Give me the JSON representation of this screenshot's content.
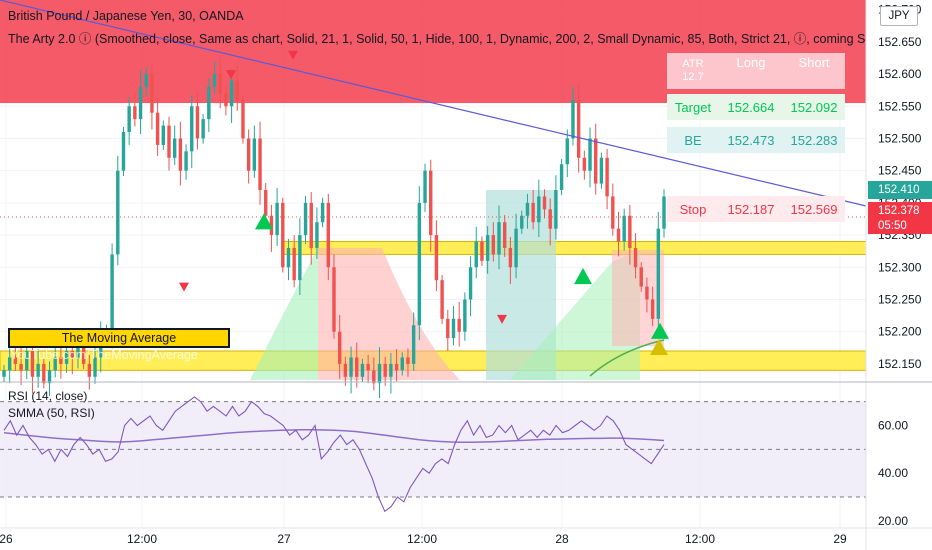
{
  "header": {
    "title": "British Pound / Japanese Yen, 30, OANDA",
    "study": "The Arty 2.0 ⓘ (Smoothed, close, Same as chart, Solid, 21, 1, Solid, 50, 1, Hide, 100, 1, Dynamic, 200, 2, Small Dynamic, 85, Both, Strict 21, ⓘ, coming S"
  },
  "currency_button": "JPY",
  "price_tags": {
    "last": "152.410",
    "current": "152.378",
    "countdown": "05:50"
  },
  "table": {
    "header_row": [
      "ATR\n12.7",
      "Long",
      "Short"
    ],
    "rows": [
      {
        "label": "Target",
        "long": "152.664",
        "short": "152.092"
      },
      {
        "label": "BE",
        "long": "152.473",
        "short": "152.283"
      },
      {
        "label": "Stop",
        "long": "152.187",
        "short": "152.569"
      }
    ]
  },
  "overlay": {
    "ma_box": "The Moving Average",
    "watermark": "YouTube.com/TheMovingAverage"
  },
  "rsi_labels": {
    "rsi": "RSI (14, close)",
    "smma": "SMMA (50, RSI)"
  },
  "colors": {
    "up": "#26a69a",
    "down": "#ef5350",
    "bull_candle": "#26a69a",
    "bear_candle": "#ef5350",
    "zone_red": "#f23645",
    "zone_yellow": "#ffeb3b",
    "trendline": "#5b5bd6",
    "rsi_line": "#7e57c2",
    "rsi_band": "#ede7f6"
  },
  "chart_data": [
    {
      "type": "candlestick",
      "title": "British Pound / Japanese Yen, 30, OANDA",
      "y_ticks": [
        152.7,
        152.65,
        152.6,
        152.55,
        152.5,
        152.45,
        152.4,
        152.35,
        152.3,
        152.25,
        152.2,
        152.15
      ],
      "y_tick_labels": [
        "152.700",
        "152.650",
        "152.600",
        "152.550",
        "152.500",
        "152.450",
        "152.400",
        "152.350",
        "152.300",
        "152.250",
        "152.200",
        "152.150"
      ],
      "ylim": [
        152.125,
        152.715
      ],
      "x_tick_labels": [
        "26",
        "12:00",
        "27",
        "12:00",
        "28",
        "12:00",
        "29"
      ],
      "close": [
        152.14,
        152.16,
        152.15,
        152.14,
        152.17,
        152.13,
        152.15,
        152.12,
        152.14,
        152.16,
        152.15,
        152.17,
        152.16,
        152.18,
        152.15,
        152.13,
        152.16,
        152.19,
        152.2,
        152.32,
        152.45,
        152.51,
        152.55,
        152.53,
        152.58,
        152.6,
        152.54,
        152.49,
        152.52,
        152.47,
        152.5,
        152.45,
        152.48,
        152.55,
        152.5,
        152.53,
        152.58,
        152.6,
        152.57,
        152.55,
        152.59,
        152.56,
        152.5,
        152.45,
        152.5,
        152.42,
        152.38,
        152.35,
        152.4,
        152.3,
        152.33,
        152.28,
        152.35,
        152.4,
        152.33,
        152.37,
        152.4,
        152.3,
        152.2,
        152.15,
        152.13,
        152.16,
        152.13,
        152.15,
        152.14,
        152.12,
        152.15,
        152.13,
        152.15,
        152.14,
        152.16,
        152.15,
        152.21,
        152.4,
        152.45,
        152.35,
        152.28,
        152.22,
        152.19,
        152.22,
        152.2,
        152.25,
        152.3,
        152.34,
        152.31,
        152.35,
        152.32,
        152.37,
        152.33,
        152.3,
        152.36,
        152.38,
        152.4,
        152.37,
        152.41,
        152.39,
        152.36,
        152.42,
        152.46,
        152.5,
        152.56,
        152.47,
        152.45,
        152.5,
        152.43,
        152.47,
        152.41,
        152.36,
        152.34,
        152.38,
        152.33,
        152.3,
        152.27,
        152.25,
        152.22,
        152.36,
        152.41
      ],
      "zones": [
        {
          "kind": "resistance",
          "from": 152.555,
          "to": 152.72,
          "color": "red"
        },
        {
          "kind": "level",
          "from": 152.32,
          "to": 152.34,
          "color": "yellow"
        },
        {
          "kind": "support",
          "from": 152.14,
          "to": 152.17,
          "color": "yellow"
        }
      ],
      "markers": [
        {
          "shape": "triangle-up",
          "color": "green",
          "price": 152.37
        },
        {
          "shape": "triangle-up",
          "color": "green",
          "price": 152.285
        },
        {
          "shape": "triangle-up",
          "color": "green",
          "price": 152.2
        },
        {
          "shape": "triangle-up",
          "color": "yellow",
          "price": 152.175
        },
        {
          "shape": "triangle-down",
          "color": "red",
          "price": 152.6
        },
        {
          "shape": "triangle-down",
          "color": "red",
          "price": 152.63
        },
        {
          "shape": "triangle-down",
          "color": "red",
          "price": 152.22
        },
        {
          "shape": "triangle-down",
          "color": "red",
          "price": 152.27
        }
      ],
      "price_labels": {
        "last": 152.41,
        "current": 152.378
      }
    },
    {
      "type": "line",
      "series": [
        {
          "name": "RSI (14, close)",
          "values": [
            58,
            62,
            56,
            60,
            55,
            52,
            48,
            50,
            45,
            50,
            47,
            52,
            55,
            52,
            48,
            50,
            45,
            46,
            49,
            60,
            63,
            60,
            62,
            64,
            60,
            58,
            62,
            66,
            68,
            70,
            72,
            70,
            66,
            68,
            66,
            64,
            68,
            64,
            66,
            70,
            68,
            65,
            64,
            62,
            60,
            56,
            58,
            54,
            56,
            60,
            46,
            49,
            53,
            56,
            52,
            54,
            50,
            44,
            38,
            30,
            24,
            26,
            30,
            28,
            34,
            38,
            42,
            40,
            44,
            46,
            44,
            52,
            58,
            62,
            56,
            60,
            55,
            56,
            60,
            57,
            60,
            54,
            56,
            58,
            55,
            58,
            56,
            60,
            57,
            58,
            60,
            62,
            60,
            58,
            60,
            64,
            62,
            58,
            52,
            50,
            48,
            46,
            44,
            48,
            52
          ]
        },
        {
          "name": "SMMA (50, RSI)",
          "values": [
            57,
            56.5,
            56,
            55.5,
            55,
            54.6,
            54.3,
            54,
            53.7,
            53.4,
            53.2,
            53.1,
            53.3,
            53.6,
            54,
            54.4,
            54.8,
            55.2,
            55.6,
            56,
            56.4,
            56.8,
            57.1,
            57.4,
            57.6,
            57.8,
            58,
            58.1,
            58.2,
            58.2,
            58.1,
            58,
            57.8,
            57.5,
            57,
            56.4,
            55.8,
            55.2,
            54.6,
            54,
            53.6,
            53.3,
            53.1,
            53,
            53,
            53.1,
            53.2,
            53.4,
            53.6,
            53.8,
            54,
            54.2,
            54.3,
            54.4,
            54.5,
            54.6,
            54.6,
            54.7,
            54.7,
            54.5,
            54.3,
            54,
            53.7
          ]
        }
      ],
      "y_ticks": [
        20,
        40,
        60
      ],
      "y_tick_labels": [
        "20.00",
        "40.00",
        "60.00"
      ],
      "levels": [
        70,
        50,
        30
      ],
      "ylim": [
        17,
        77
      ]
    }
  ]
}
